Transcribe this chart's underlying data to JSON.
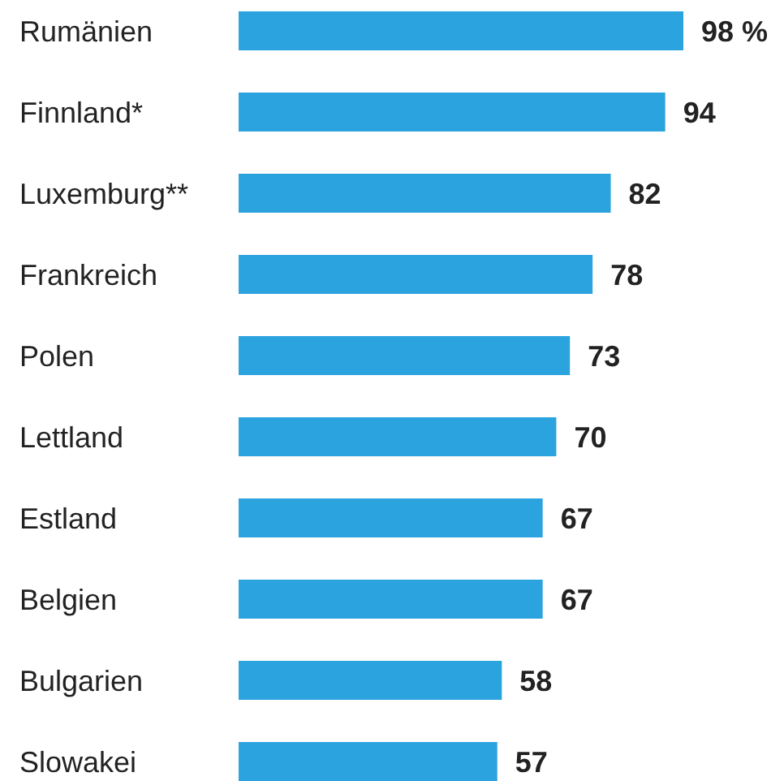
{
  "chart_data": {
    "type": "bar",
    "orientation": "horizontal",
    "categories": [
      "Rumänien",
      "Finnland*",
      "Luxemburg**",
      "Frankreich",
      "Polen",
      "Lettland",
      "Estland",
      "Belgien",
      "Bulgarien",
      "Slowakei"
    ],
    "values": [
      98,
      94,
      82,
      78,
      73,
      70,
      67,
      67,
      58,
      57
    ],
    "value_labels": [
      "98 %",
      "94",
      "82",
      "78",
      "73",
      "70",
      "67",
      "67",
      "58",
      "57"
    ],
    "color": "#2ba3de"
  }
}
